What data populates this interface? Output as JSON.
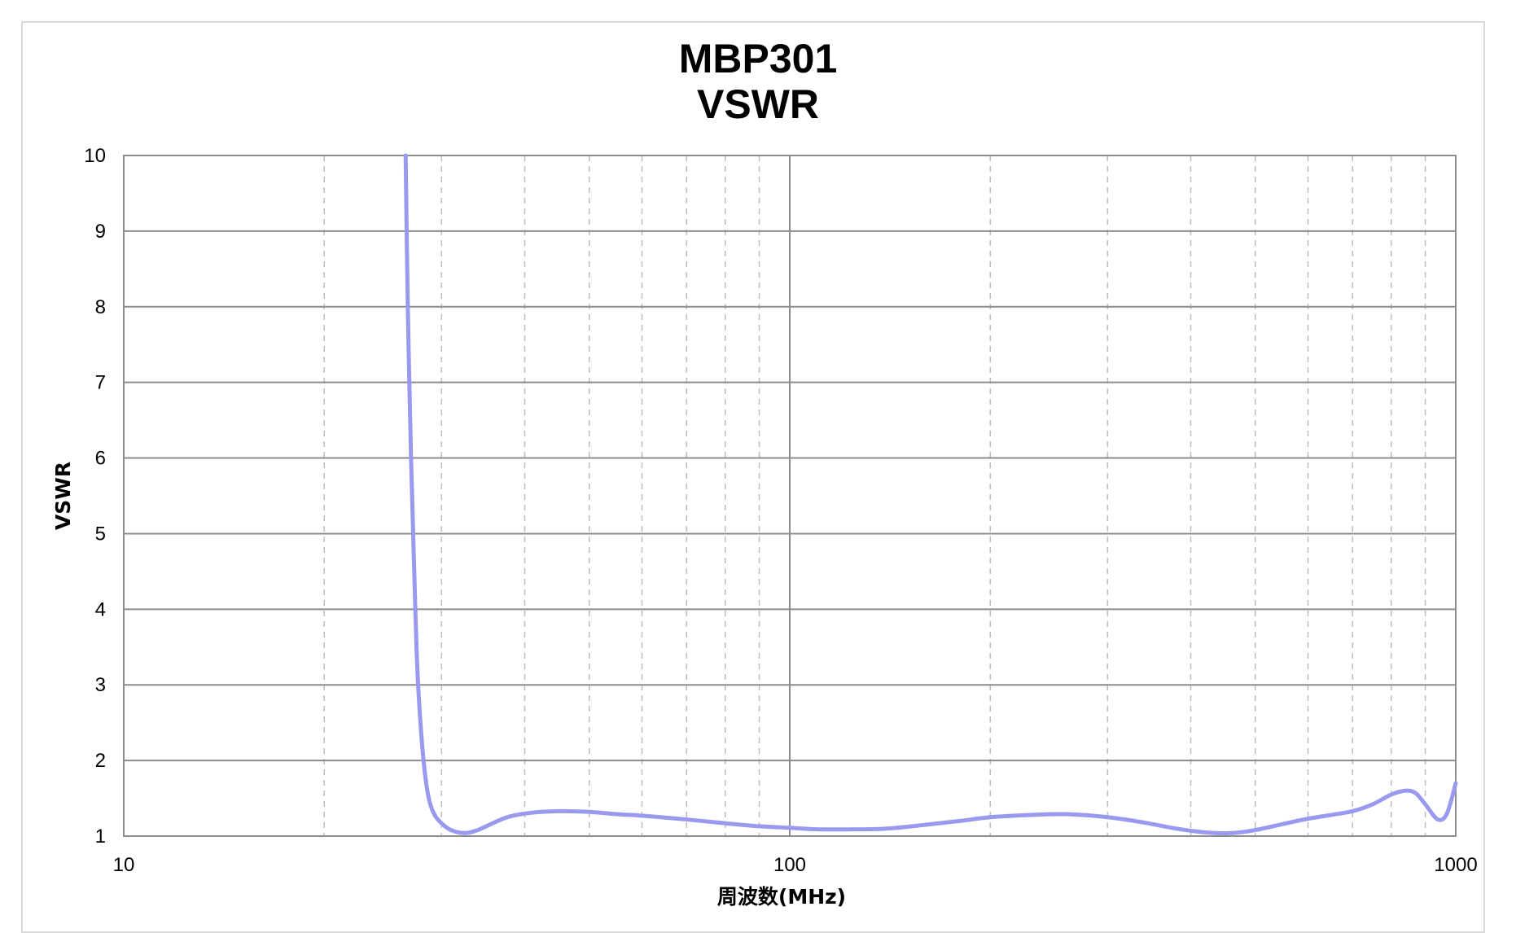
{
  "chart_data": {
    "type": "line",
    "title": "MBP301",
    "subtitle": "VSWR",
    "xlabel": "周波数(MHz)",
    "ylabel": "VSWR",
    "x_scale": "log",
    "xlim": [
      10,
      1000
    ],
    "ylim": [
      1,
      10
    ],
    "x_tick_labels": [
      "10",
      "100",
      "1000"
    ],
    "y_tick_labels": [
      "1",
      "2",
      "3",
      "4",
      "5",
      "6",
      "7",
      "8",
      "9",
      "10"
    ],
    "grid": true,
    "series_color": "#9999f0",
    "series": [
      {
        "x": [
          26.5,
          26.7,
          27.0,
          27.3,
          27.6,
          28.0,
          28.4,
          28.8,
          29.3,
          30.0,
          31.0,
          32.5,
          34.0,
          36.0,
          38.0,
          41.0,
          45.0,
          50.0,
          55.0,
          60.0,
          70.0,
          80.0,
          90.0,
          100.0,
          110.0,
          125.0,
          140.0,
          160.0,
          180.0,
          200.0,
          230.0,
          260.0,
          300.0,
          340.0,
          380.0,
          420.0,
          460.0,
          500.0,
          550.0,
          600.0,
          650.0,
          700.0,
          750.0,
          800.0,
          840.0,
          870.0,
          900.0,
          940.0,
          970.0,
          1000.0
        ],
        "y": [
          10.0,
          8.0,
          6.0,
          4.5,
          3.2,
          2.3,
          1.75,
          1.45,
          1.28,
          1.17,
          1.08,
          1.04,
          1.08,
          1.18,
          1.26,
          1.31,
          1.33,
          1.32,
          1.29,
          1.27,
          1.22,
          1.17,
          1.13,
          1.11,
          1.09,
          1.09,
          1.1,
          1.15,
          1.2,
          1.25,
          1.28,
          1.29,
          1.25,
          1.18,
          1.1,
          1.05,
          1.04,
          1.08,
          1.16,
          1.23,
          1.28,
          1.33,
          1.42,
          1.55,
          1.6,
          1.57,
          1.42,
          1.22,
          1.3,
          1.7
        ]
      }
    ]
  }
}
